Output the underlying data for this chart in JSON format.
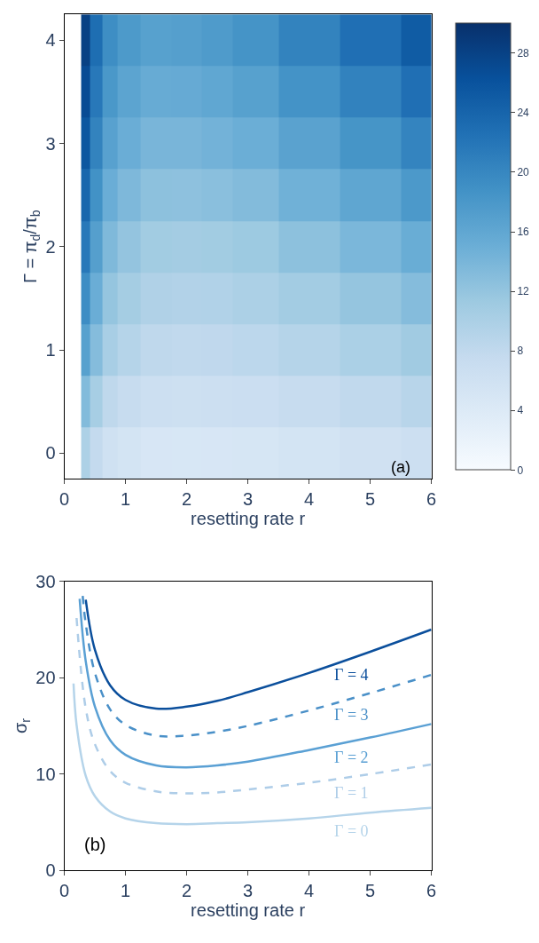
{
  "chart_data": [
    {
      "type": "heatmap",
      "xlabel": "resetting rate r",
      "ylabel": "Γ = π$_{d}$/π$_{b}$",
      "x": [
        0.35,
        0.5,
        0.75,
        1,
        1.5,
        2,
        2.5,
        3,
        4,
        5,
        6
      ],
      "y_categories": [
        "4",
        null,
        "3",
        null,
        "2",
        null,
        "1",
        null,
        "0"
      ],
      "cells": [
        [
          28.1,
          22.9,
          19.2,
          17.7,
          16.8,
          17.0,
          17.6,
          18.5,
          20.5,
          22.7,
          25.0
        ],
        [
          26.9,
          21.7,
          18.0,
          16.4,
          15.4,
          15.5,
          16.0,
          16.8,
          18.6,
          20.6,
          22.7
        ],
        [
          25.6,
          20.5,
          16.7,
          15.1,
          14.0,
          14.0,
          14.4,
          15.0,
          16.6,
          18.4,
          20.3
        ],
        [
          23.7,
          18.8,
          15.1,
          13.6,
          12.5,
          12.4,
          12.7,
          13.2,
          14.6,
          16.1,
          17.8
        ],
        [
          21.7,
          17.0,
          13.5,
          12.0,
          10.9,
          10.7,
          10.9,
          11.3,
          12.5,
          13.8,
          15.2
        ],
        [
          19.3,
          15.1,
          11.9,
          10.6,
          9.6,
          9.4,
          9.5,
          9.9,
          10.8,
          11.9,
          13.1
        ],
        [
          16.8,
          13.1,
          10.3,
          9.1,
          8.2,
          8.0,
          8.1,
          8.4,
          9.1,
          10.0,
          11.0
        ],
        [
          13.3,
          10.4,
          8.2,
          7.3,
          6.6,
          6.4,
          6.5,
          6.7,
          7.3,
          8.0,
          8.8
        ],
        [
          9.8,
          7.7,
          6.1,
          5.4,
          4.9,
          4.8,
          4.9,
          5.0,
          5.4,
          6.0,
          6.5
        ]
      ],
      "xlim": [
        0,
        6
      ],
      "xticks": [
        0,
        1,
        2,
        3,
        4,
        5,
        6
      ],
      "clim": [
        0,
        30
      ],
      "cticks": [
        0,
        4,
        8,
        12,
        16,
        20,
        24,
        28
      ],
      "annotations": [
        "(a)"
      ]
    },
    {
      "type": "line",
      "xlabel": "resetting rate r",
      "ylabel": "σ$_{r}$",
      "series": [
        {
          "name": "Γ = 4",
          "color": "#0b4f9c",
          "line_style": "solid",
          "x": [
            0.35,
            0.5,
            0.75,
            1,
            1.5,
            2,
            2.5,
            3,
            4,
            5,
            6
          ],
          "values": [
            28.1,
            22.9,
            19.2,
            17.7,
            16.8,
            17.0,
            17.6,
            18.5,
            20.5,
            22.7,
            25.0
          ]
        },
        {
          "name": "Γ = 3",
          "color": "#4a90c8",
          "line_style": "dashed",
          "x": [
            0.3,
            0.35,
            0.5,
            0.75,
            1,
            1.5,
            2,
            2.5,
            3,
            4,
            5,
            6
          ],
          "values": [
            28.5,
            25.6,
            20.5,
            16.7,
            15.1,
            14.0,
            14.0,
            14.4,
            15.0,
            16.6,
            18.4,
            20.3
          ]
        },
        {
          "name": "Γ = 2",
          "color": "#5aa0d4",
          "line_style": "solid",
          "x": [
            0.25,
            0.35,
            0.5,
            0.75,
            1,
            1.5,
            2,
            2.5,
            3,
            4,
            5,
            6
          ],
          "values": [
            28.2,
            21.7,
            17.0,
            13.5,
            12.0,
            10.9,
            10.7,
            10.9,
            11.3,
            12.5,
            13.8,
            15.2
          ]
        },
        {
          "name": "Γ = 1",
          "color": "#aecde8",
          "line_style": "dashed",
          "x": [
            0.2,
            0.35,
            0.5,
            0.75,
            1,
            1.5,
            2,
            2.5,
            3,
            4,
            5,
            6
          ],
          "values": [
            26.2,
            16.8,
            13.1,
            10.3,
            9.1,
            8.2,
            8.0,
            8.1,
            8.4,
            9.1,
            10.0,
            11.0
          ]
        },
        {
          "name": "Γ = 0",
          "color": "#b5d4ea",
          "line_style": "solid",
          "x": [
            0.15,
            0.2,
            0.35,
            0.5,
            0.75,
            1,
            1.5,
            2,
            2.5,
            3,
            4,
            5,
            6
          ],
          "values": [
            19.4,
            15.1,
            9.8,
            7.7,
            6.1,
            5.4,
            4.9,
            4.8,
            4.9,
            5.0,
            5.4,
            6.0,
            6.5
          ]
        }
      ],
      "xlim": [
        0,
        6
      ],
      "xticks": [
        0,
        1,
        2,
        3,
        4,
        5,
        6
      ],
      "ylim": [
        0,
        30
      ],
      "yticks": [
        0,
        10,
        20,
        30
      ],
      "annotations": [
        "(b)"
      ]
    }
  ]
}
